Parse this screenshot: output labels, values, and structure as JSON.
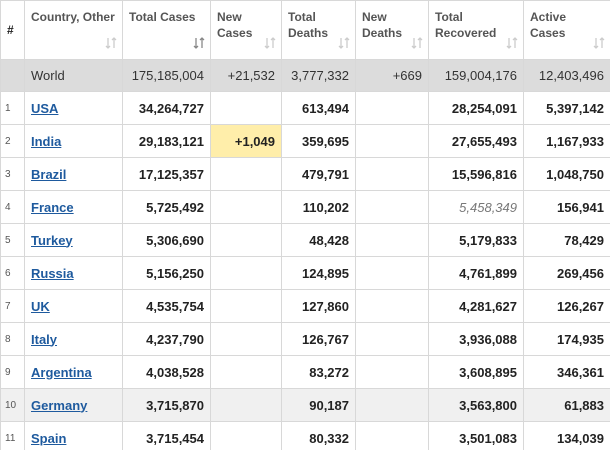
{
  "table": {
    "headers": [
      "#",
      "Country, Other",
      "Total Cases",
      "New Cases",
      "Total Deaths",
      "New Deaths",
      "Total Recovered",
      "Active Cases"
    ],
    "world": {
      "label": "World",
      "cells": [
        "175,185,004",
        "+21,532",
        "3,777,332",
        "+669",
        "159,004,176",
        "12,403,496"
      ]
    },
    "rows": [
      {
        "rank": "1",
        "country": "USA",
        "cells": [
          "34,264,727",
          null,
          "613,494",
          null,
          "28,254,091",
          "5,397,142"
        ]
      },
      {
        "rank": "2",
        "country": "India",
        "cells": [
          "29,183,121",
          "+1,049",
          "359,695",
          null,
          "27,655,493",
          "1,167,933"
        ]
      },
      {
        "rank": "3",
        "country": "Brazil",
        "cells": [
          "17,125,357",
          null,
          "479,791",
          null,
          "15,596,816",
          "1,048,750"
        ]
      },
      {
        "rank": "4",
        "country": "France",
        "cells": [
          "5,725,492",
          null,
          "110,202",
          null,
          "5,458,349",
          "156,941"
        ]
      },
      {
        "rank": "5",
        "country": "Turkey",
        "cells": [
          "5,306,690",
          null,
          "48,428",
          null,
          "5,179,833",
          "78,429"
        ]
      },
      {
        "rank": "6",
        "country": "Russia",
        "cells": [
          "5,156,250",
          null,
          "124,895",
          null,
          "4,761,899",
          "269,456"
        ]
      },
      {
        "rank": "7",
        "country": "UK",
        "cells": [
          "4,535,754",
          null,
          "127,860",
          null,
          "4,281,627",
          "126,267"
        ]
      },
      {
        "rank": "8",
        "country": "Italy",
        "cells": [
          "4,237,790",
          null,
          "126,767",
          null,
          "3,936,088",
          "174,935"
        ]
      },
      {
        "rank": "9",
        "country": "Argentina",
        "cells": [
          "4,038,528",
          null,
          "83,272",
          null,
          "3,608,895",
          "346,361"
        ]
      },
      {
        "rank": "10",
        "country": "Germany",
        "cells": [
          "3,715,870",
          null,
          "90,187",
          null,
          "3,563,800",
          "61,883"
        ]
      },
      {
        "rank": "11",
        "country": "Spain",
        "cells": [
          "3,715,454",
          null,
          "80,332",
          null,
          "3,501,083",
          "134,039"
        ]
      }
    ]
  }
}
